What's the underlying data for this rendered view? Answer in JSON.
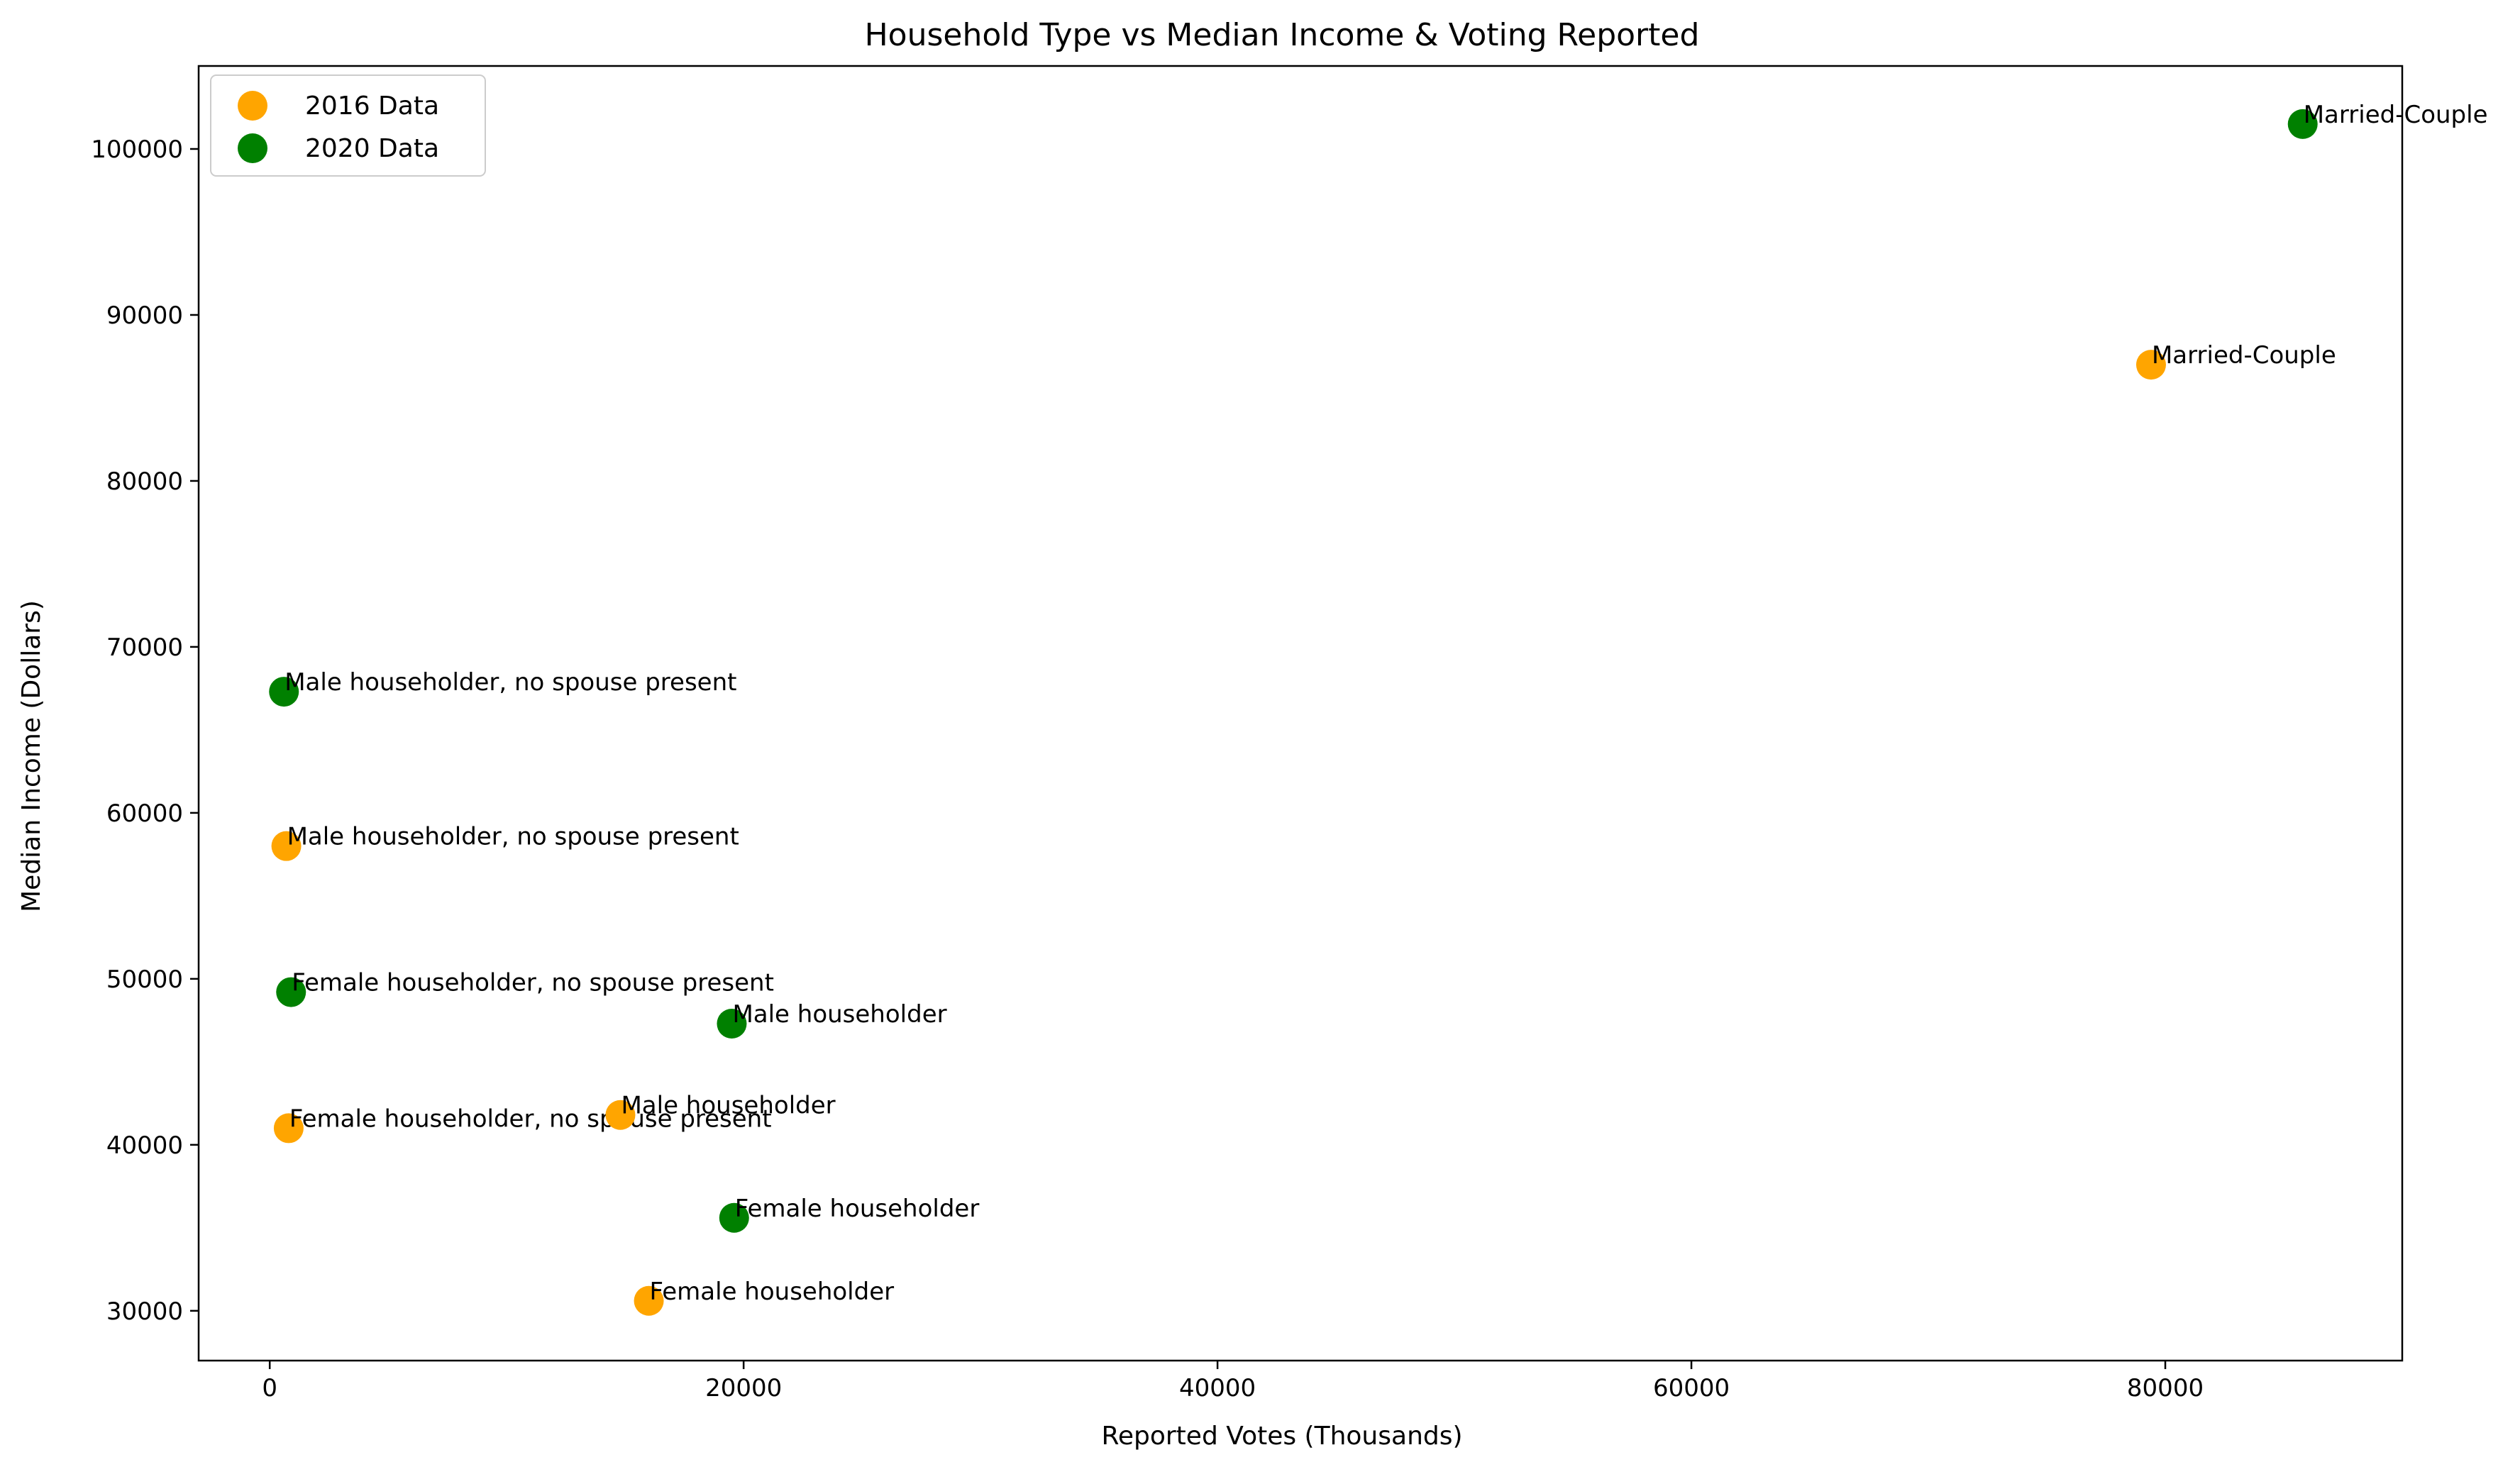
{
  "chart_data": {
    "type": "scatter",
    "title": "Household Type vs Median Income & Voting Reported",
    "xlabel": "Reported Votes (Thousands)",
    "ylabel": "Median Income (Dollars)",
    "xlim": [
      -3000,
      90000
    ],
    "ylim": [
      27000,
      105000
    ],
    "xticks": [
      0,
      20000,
      40000,
      60000,
      80000
    ],
    "yticks": [
      30000,
      40000,
      50000,
      60000,
      70000,
      80000,
      90000,
      100000
    ],
    "grid": false,
    "legend": "top-left",
    "series": [
      {
        "name": "2016 Data",
        "color": "#FFA500",
        "points": [
          {
            "label": "Married-Couple",
            "x": 79400,
            "y": 87000
          },
          {
            "label": "Male householder, no spouse present",
            "x": 700,
            "y": 58000
          },
          {
            "label": "Female householder, no spouse present",
            "x": 800,
            "y": 41000
          },
          {
            "label": "Male householder",
            "x": 14800,
            "y": 41800
          },
          {
            "label": "Female householder",
            "x": 16000,
            "y": 30600
          }
        ]
      },
      {
        "name": "2020 Data",
        "color": "#008000",
        "points": [
          {
            "label": "Married-Couple",
            "x": 85800,
            "y": 101500
          },
          {
            "label": "Male householder, no spouse present",
            "x": 600,
            "y": 67300
          },
          {
            "label": "Female householder, no spouse present",
            "x": 900,
            "y": 49200
          },
          {
            "label": "Male householder",
            "x": 19500,
            "y": 47300
          },
          {
            "label": "Female householder",
            "x": 19600,
            "y": 35600
          }
        ]
      }
    ]
  }
}
